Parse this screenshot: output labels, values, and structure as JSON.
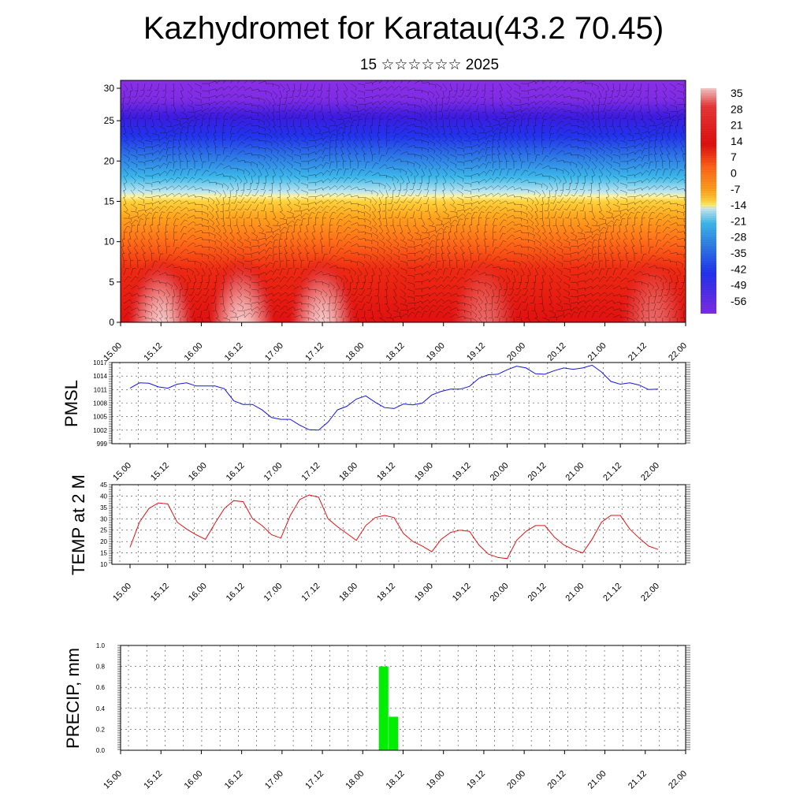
{
  "title": "Kazhydromet for Karatau(43.2 70.45)",
  "subtitle": "15 ☆☆☆☆☆☆ 2025",
  "colors": {
    "pmsl": "#1414e0",
    "temp": "#e01414",
    "precip": "#00ee00"
  },
  "time_ticks": [
    "15.00",
    "15.12",
    "16.00",
    "16.12",
    "17.00",
    "17.12",
    "18.00",
    "18.12",
    "19.00",
    "19.12",
    "20.00",
    "20.12",
    "21.00",
    "21.12",
    "22.00"
  ],
  "chart_data": [
    {
      "type": "heatmap",
      "description_id": "cross-section",
      "yticks": [
        "0",
        "5",
        "10",
        "15",
        "20",
        "25",
        "30"
      ],
      "ylim": [
        0,
        30
      ],
      "colorbar_labels": [
        "35",
        "28",
        "21",
        "14",
        "7",
        "0",
        "-7",
        "-14",
        "-21",
        "-28",
        "-35",
        "-42",
        "-49",
        "-56"
      ],
      "colormap": [
        "#7f2be5",
        "#3c1be0",
        "#2233ee",
        "#2e7ce6",
        "#3cb8ea",
        "#9ad7ec",
        "#fff07a",
        "#ffd23c",
        "#ffa020",
        "#ff6418",
        "#f02a10",
        "#e01010",
        "#e83838",
        "#f4b4b4"
      ],
      "overlay": "wind-barbs"
    },
    {
      "type": "line",
      "ylabel": "PMSL",
      "yticks": [
        "1017",
        "1014",
        "1011",
        "1008",
        "1005",
        "1002",
        "999"
      ],
      "ylim": [
        999,
        1017
      ],
      "x": [
        0,
        1,
        2,
        3,
        4,
        5,
        6,
        7,
        8,
        9,
        10,
        11,
        12,
        13,
        14,
        15,
        16,
        17,
        18,
        19,
        20,
        21,
        22,
        23,
        24,
        25,
        26,
        27,
        28,
        29,
        30,
        31,
        32,
        33,
        34,
        35,
        36,
        37,
        38,
        39,
        40,
        41,
        42,
        43,
        44,
        45,
        46,
        47,
        48,
        49,
        50,
        51,
        52,
        53,
        54,
        55,
        56
      ],
      "values": [
        1011.3,
        1012.5,
        1012.4,
        1011.6,
        1011.3,
        1012.2,
        1012.5,
        1011.8,
        1011.8,
        1011.8,
        1011.2,
        1008.5,
        1007.7,
        1007.7,
        1006.5,
        1004.8,
        1004.4,
        1004.4,
        1003.1,
        1002.1,
        1002.0,
        1003.8,
        1006.5,
        1007.3,
        1008.9,
        1009.6,
        1008.2,
        1007.0,
        1006.8,
        1007.8,
        1007.6,
        1008.0,
        1009.8,
        1010.6,
        1011.1,
        1011.1,
        1011.7,
        1013.5,
        1014.3,
        1014.4,
        1015.4,
        1016.2,
        1015.8,
        1014.5,
        1014.4,
        1015.2,
        1015.8,
        1015.5,
        1015.8,
        1016.4,
        1014.9,
        1012.8,
        1012.2,
        1012.5,
        1012.0,
        1011.0,
        1011.1
      ]
    },
    {
      "type": "line",
      "ylabel": "TEMP at 2 M",
      "yticks": [
        "45",
        "40",
        "35",
        "30",
        "25",
        "20",
        "15",
        "10"
      ],
      "ylim": [
        10,
        45
      ],
      "x": [
        0,
        1,
        2,
        3,
        4,
        5,
        6,
        7,
        8,
        9,
        10,
        11,
        12,
        13,
        14,
        15,
        16,
        17,
        18,
        19,
        20,
        21,
        22,
        23,
        24,
        25,
        26,
        27,
        28,
        29,
        30,
        31,
        32,
        33,
        34,
        35,
        36,
        37,
        38,
        39,
        40,
        41,
        42,
        43,
        44,
        45,
        46,
        47,
        48,
        49,
        50,
        51,
        52,
        53,
        54,
        55,
        56
      ],
      "values": [
        17.5,
        28.5,
        34.5,
        37.0,
        36.5,
        28.5,
        25.5,
        23.0,
        21.0,
        28.0,
        34.5,
        38.0,
        37.5,
        30.0,
        27.0,
        23.0,
        21.5,
        31.5,
        38.5,
        40.5,
        39.5,
        30.0,
        26.5,
        23.5,
        20.5,
        27.0,
        30.5,
        31.5,
        30.5,
        23.5,
        20.0,
        18.0,
        15.5,
        21.0,
        24.0,
        25.0,
        24.5,
        18.5,
        14.5,
        13.0,
        12.5,
        20.5,
        24.5,
        27.0,
        27.0,
        22.0,
        18.5,
        16.5,
        15.0,
        21.0,
        28.5,
        31.5,
        31.5,
        25.5,
        21.5,
        18.0,
        16.5
      ]
    },
    {
      "type": "bar",
      "ylabel": "PRECIP, mm",
      "yticks": [
        "1.0",
        "0.8",
        "0.6",
        "0.4",
        "0.2",
        "0.0"
      ],
      "ylim": [
        0,
        1
      ],
      "bars": [
        {
          "x": 26,
          "value": 0.8
        },
        {
          "x": 27,
          "value": 0.32
        }
      ]
    }
  ]
}
